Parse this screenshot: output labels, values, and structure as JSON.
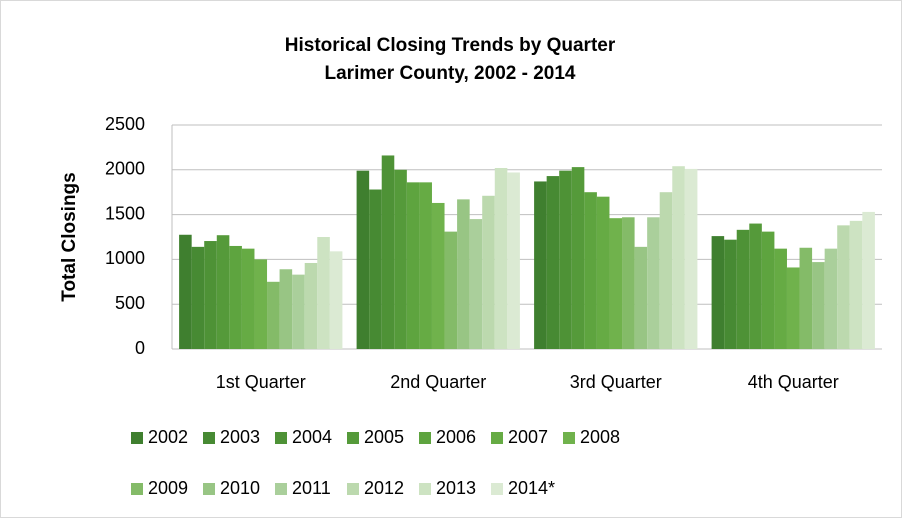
{
  "chart_data": {
    "type": "bar",
    "title": "Historical Closing Trends by Quarter",
    "subtitle": "Larimer County, 2002 - 2014",
    "y_label": "Total Closings",
    "categories": [
      "1st Quarter",
      "2nd Quarter",
      "3rd Quarter",
      "4th Quarter"
    ],
    "series": [
      {
        "name": "2002",
        "color": "#3f7f2f",
        "values": [
          1275,
          1990,
          1870,
          1260
        ]
      },
      {
        "name": "2003",
        "color": "#478a33",
        "values": [
          1140,
          1780,
          1930,
          1220
        ]
      },
      {
        "name": "2004",
        "color": "#4e9236",
        "values": [
          1205,
          2160,
          1990,
          1330
        ]
      },
      {
        "name": "2005",
        "color": "#559a3a",
        "values": [
          1270,
          2000,
          2030,
          1400
        ]
      },
      {
        "name": "2006",
        "color": "#5ea43f",
        "values": [
          1150,
          1860,
          1750,
          1310
        ]
      },
      {
        "name": "2007",
        "color": "#66ab44",
        "values": [
          1120,
          1860,
          1700,
          1120
        ]
      },
      {
        "name": "2008",
        "color": "#70b24c",
        "values": [
          1000,
          1630,
          1460,
          910
        ]
      },
      {
        "name": "2009",
        "color": "#84bb68",
        "values": [
          750,
          1310,
          1470,
          1130
        ]
      },
      {
        "name": "2010",
        "color": "#98c584",
        "values": [
          890,
          1670,
          1140,
          970
        ]
      },
      {
        "name": "2011",
        "color": "#aacf9b",
        "values": [
          830,
          1450,
          1470,
          1120
        ]
      },
      {
        "name": "2012",
        "color": "#bcd9ae",
        "values": [
          960,
          1710,
          1750,
          1380
        ]
      },
      {
        "name": "2013",
        "color": "#cde3c2",
        "values": [
          1250,
          2020,
          2040,
          1430
        ]
      },
      {
        "name": "2014*",
        "color": "#dbead3",
        "values": [
          1090,
          1970,
          2010,
          1530
        ]
      }
    ],
    "ylim": [
      0,
      2500
    ],
    "yticks": [
      0,
      500,
      1000,
      1500,
      2000,
      2500
    ],
    "grid": true,
    "legend": "bottom"
  }
}
